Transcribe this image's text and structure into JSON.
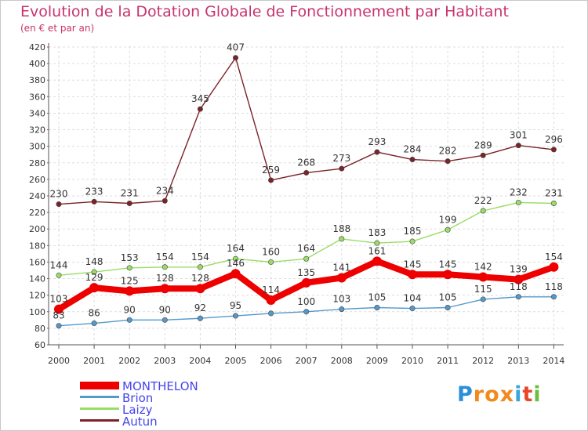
{
  "title": "Evolution de la Dotation Globale de Fonctionnement par Habitant",
  "subtitle": "(en € et par an)",
  "brand": {
    "name": "Proxiti",
    "letters": [
      "P",
      "r",
      "o",
      "x",
      "i",
      "t",
      "i"
    ],
    "colors": [
      "#2a8fd6",
      "#f08a1c",
      "#f08a1c",
      "#f08a1c",
      "#3aa6e0",
      "#e8452c",
      "#6cbf3a"
    ]
  },
  "chart_data": {
    "type": "line",
    "x": [
      "2000",
      "2001",
      "2002",
      "2003",
      "2004",
      "2005",
      "2006",
      "2007",
      "2008",
      "2009",
      "2010",
      "2011",
      "2012",
      "2013",
      "2014"
    ],
    "ylim": [
      60,
      420
    ],
    "yticks": [
      60,
      80,
      100,
      120,
      140,
      160,
      180,
      200,
      220,
      240,
      260,
      280,
      300,
      320,
      340,
      360,
      380,
      400,
      420
    ],
    "grid": true,
    "legend": "bottom-left",
    "series": [
      {
        "name": "Autun",
        "color": "#7b2328",
        "values": [
          230,
          233,
          231,
          234,
          345,
          407,
          259,
          268,
          273,
          293,
          284,
          282,
          289,
          301,
          296
        ]
      },
      {
        "name": "Laizy",
        "color": "#99dd66",
        "values": [
          144,
          148,
          153,
          154,
          154,
          164,
          160,
          164,
          188,
          183,
          185,
          199,
          222,
          232,
          231
        ]
      },
      {
        "name": "Brion",
        "color": "#5599cc",
        "values": [
          83,
          86,
          90,
          90,
          92,
          95,
          98,
          100,
          103,
          105,
          104,
          105,
          115,
          118,
          118
        ]
      },
      {
        "name": "MONTHELON",
        "color": "#ee0000",
        "values": [
          103,
          129,
          125,
          128,
          128,
          146,
          114,
          135,
          141,
          161,
          145,
          145,
          142,
          139,
          154
        ]
      }
    ],
    "data_labels": {
      "Autun": [
        "230",
        "233",
        "231",
        "234",
        "345",
        "407",
        "259",
        "268",
        "273",
        "293",
        "284",
        "282",
        "289",
        "301",
        "296"
      ],
      "Laizy": [
        "144",
        "148",
        "153",
        "154",
        "154",
        "164",
        "160",
        "164",
        "188",
        "183",
        "185",
        "199",
        "222",
        "232",
        "231"
      ],
      "Brion": [
        "83",
        "86",
        "90",
        "90",
        "92",
        "95",
        "",
        "100",
        "103",
        "105",
        "104",
        "105",
        "115",
        "118",
        "118"
      ],
      "MONTHELON": [
        "103",
        "129",
        "125",
        "128",
        "128",
        "146",
        "114",
        "135",
        "141",
        "161",
        "145",
        "145",
        "142",
        "139",
        "154"
      ]
    },
    "legend_entries": [
      "MONTHELON",
      "Brion",
      "Laizy",
      "Autun"
    ],
    "legend_colors": {
      "MONTHELON": "#ee0000",
      "Brion": "#5599cc",
      "Laizy": "#99dd66",
      "Autun": "#7b2328"
    },
    "legend_text_color": "#4444ee"
  }
}
